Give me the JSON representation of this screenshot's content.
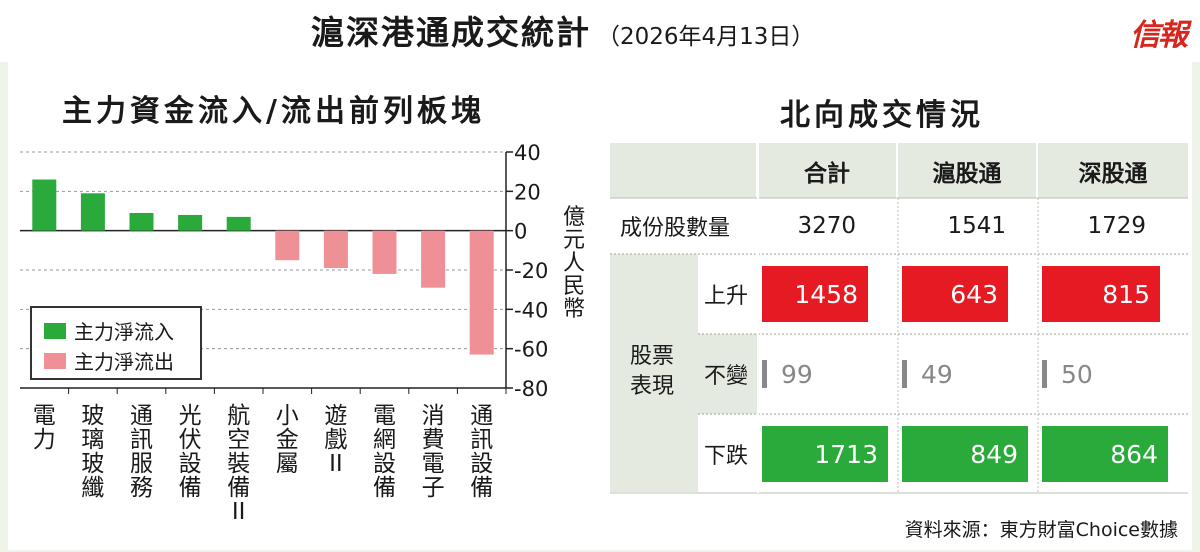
{
  "header": {
    "title": "滬深港通成交統計",
    "date": "（2026年4月13日）",
    "logo": "信報"
  },
  "colors": {
    "inflow": "#2aaa3b",
    "outflow": "#ef8f96",
    "up": "#e51a23",
    "down": "#2aaa3b",
    "flat": "#888888",
    "header_bg": "#e4eadf"
  },
  "chart_data": {
    "type": "bar",
    "title": "主力資金流入/流出前列板塊",
    "ylabel": "億元人民幣",
    "ylim": [
      -80,
      40
    ],
    "yticks": [
      40,
      20,
      0,
      -20,
      -40,
      -60,
      -80
    ],
    "grid": "dashed horizontal",
    "legend_position": "bottom-left",
    "categories": [
      "電力",
      "玻璃玻纖",
      "通訊服務",
      "光伏設備",
      "航空裝備II",
      "小金屬",
      "遊戲II",
      "電網設備",
      "消費電子",
      "通訊設備"
    ],
    "values": [
      26,
      19,
      9,
      8,
      7,
      -15,
      -19,
      -22,
      -29,
      -63
    ],
    "series": [
      {
        "name": "主力淨流入",
        "color": "#2aaa3b"
      },
      {
        "name": "主力淨流出",
        "color": "#ef8f96"
      }
    ]
  },
  "table": {
    "title": "北向成交情況",
    "columns": [
      "合計",
      "滬股通",
      "深股通"
    ],
    "stock_count_label": "成份股數量",
    "stock_counts": [
      "3270",
      "1541",
      "1729"
    ],
    "group_label": "股票表現",
    "rows": [
      {
        "label": "上升",
        "kind": "up",
        "values": [
          "1458",
          "643",
          "815"
        ]
      },
      {
        "label": "不變",
        "kind": "flat",
        "values": [
          "99",
          "49",
          "50"
        ]
      },
      {
        "label": "下跌",
        "kind": "down",
        "values": [
          "1713",
          "849",
          "864"
        ]
      }
    ]
  },
  "source": "資料來源：東方財富Choice數據"
}
